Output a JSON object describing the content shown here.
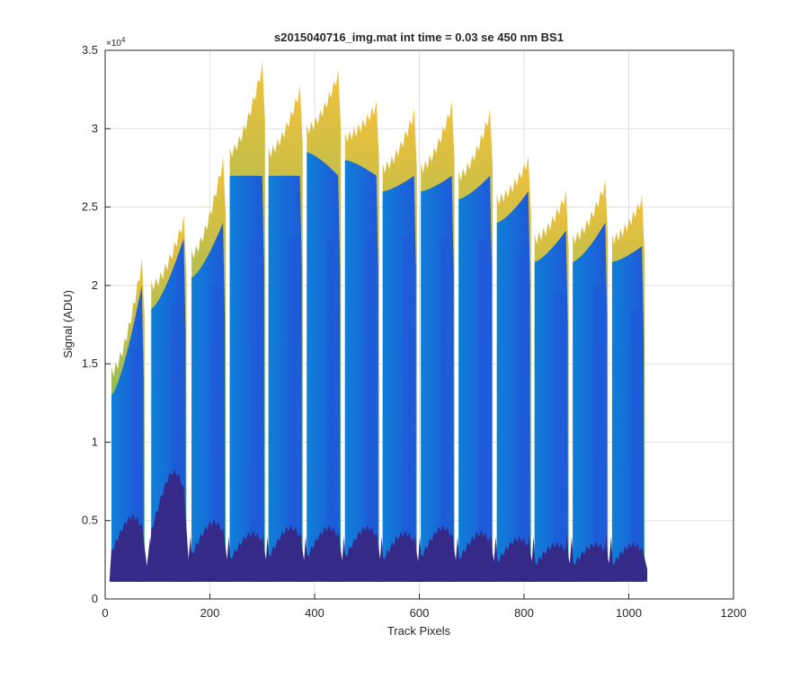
{
  "chart_data": {
    "type": "area",
    "title": "s2015040716_img.mat int time = 0.03 se  450 nm BS1",
    "xlabel": "Track Pixels",
    "ylabel": "Signal (ADU)",
    "exponent_label": "×10",
    "exponent_power": "4",
    "xlim": [
      0,
      1200
    ],
    "ylim": [
      0,
      35000
    ],
    "x_ticks": [
      0,
      200,
      400,
      600,
      800,
      1000,
      1200
    ],
    "y_ticks": [
      0,
      5000,
      10000,
      15000,
      20000,
      25000,
      30000,
      35000
    ],
    "x_tick_labels": [
      "0",
      "200",
      "400",
      "600",
      "800",
      "1000",
      "1200"
    ],
    "y_tick_labels": [
      "0",
      "0.5",
      "1",
      "1.5",
      "2",
      "2.5",
      "3",
      "3.5"
    ],
    "grid": true,
    "legend": "none",
    "colormap": "parula",
    "colors": {
      "level_low": "#352a87",
      "level_mid": "#1f58d9",
      "level_upper": "#0f7fd8",
      "level_high": "#2fb39a",
      "level_peak": "#f5c03a",
      "axis": "#262626",
      "grid": "#dfdfdf"
    },
    "fiber_segments": [
      {
        "x": [
          12,
          70
        ],
        "baseline": 1100,
        "low_peak": 7000,
        "mid_peak": 20000,
        "top_start": 14500,
        "top_end": 21500
      },
      {
        "x": [
          88,
          150
        ],
        "baseline": 1100,
        "low_peak": 11000,
        "mid_peak": 23000,
        "top_start": 20000,
        "top_end": 24200
      },
      {
        "x": [
          165,
          225
        ],
        "baseline": 1100,
        "low_peak": 6500,
        "mid_peak": 24000,
        "top_start": 22000,
        "top_end": 28000
      },
      {
        "x": [
          238,
          300
        ],
        "baseline": 1100,
        "low_peak": 5500,
        "mid_peak": 27000,
        "top_start": 28500,
        "top_end": 34000
      },
      {
        "x": [
          312,
          372
        ],
        "baseline": 1100,
        "low_peak": 6000,
        "mid_peak": 27000,
        "top_start": 28500,
        "top_end": 32500
      },
      {
        "x": [
          385,
          445
        ],
        "baseline": 1100,
        "low_peak": 6000,
        "mid_peak": 27000,
        "top_start": 30000,
        "top_end": 33500
      },
      {
        "x": [
          458,
          518
        ],
        "baseline": 1100,
        "low_peak": 6000,
        "mid_peak": 27000,
        "top_start": 29500,
        "top_end": 31500
      },
      {
        "x": [
          530,
          590
        ],
        "baseline": 1100,
        "low_peak": 5500,
        "mid_peak": 27000,
        "top_start": 27500,
        "top_end": 31000
      },
      {
        "x": [
          603,
          662
        ],
        "baseline": 1100,
        "low_peak": 6000,
        "mid_peak": 27000,
        "top_start": 27500,
        "top_end": 31500
      },
      {
        "x": [
          675,
          735
        ],
        "baseline": 1100,
        "low_peak": 5500,
        "mid_peak": 27000,
        "top_start": 27000,
        "top_end": 31000
      },
      {
        "x": [
          748,
          808
        ],
        "baseline": 1100,
        "low_peak": 5000,
        "mid_peak": 26000,
        "top_start": 25500,
        "top_end": 28000
      },
      {
        "x": [
          820,
          880
        ],
        "baseline": 1100,
        "low_peak": 4500,
        "mid_peak": 23500,
        "top_start": 23000,
        "top_end": 25800
      },
      {
        "x": [
          893,
          955
        ],
        "baseline": 1100,
        "low_peak": 4500,
        "mid_peak": 24000,
        "top_start": 23000,
        "top_end": 26500
      },
      {
        "x": [
          968,
          1025
        ],
        "baseline": 1100,
        "low_peak": 4500,
        "mid_peak": 22500,
        "top_start": 23000,
        "top_end": 25500
      }
    ]
  }
}
